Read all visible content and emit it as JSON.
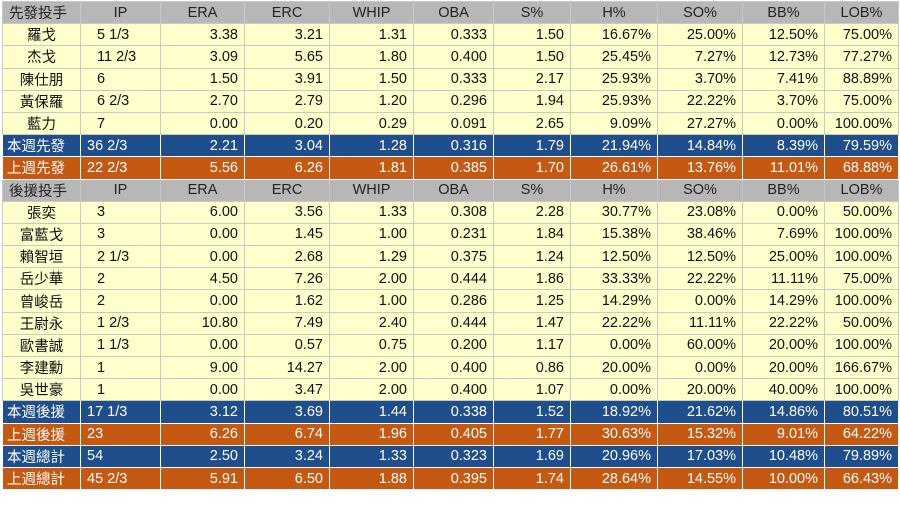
{
  "starters": {
    "header": [
      "先發投手",
      "IP",
      "ERA",
      "ERC",
      "WHIP",
      "OBA",
      "S%",
      "H%",
      "SO%",
      "BB%",
      "LOB%"
    ],
    "rows": [
      [
        "羅戈",
        "5 1/3",
        "3.38",
        "3.21",
        "1.31",
        "0.333",
        "1.50",
        "16.67%",
        "25.00%",
        "12.50%",
        "75.00%"
      ],
      [
        "杰戈",
        "11 2/3",
        "3.09",
        "5.65",
        "1.80",
        "0.400",
        "1.50",
        "25.45%",
        "7.27%",
        "12.73%",
        "77.27%"
      ],
      [
        "陳仕朋",
        "6",
        "1.50",
        "3.91",
        "1.50",
        "0.333",
        "2.17",
        "25.93%",
        "3.70%",
        "7.41%",
        "88.89%"
      ],
      [
        "黃保羅",
        "6 2/3",
        "2.70",
        "2.79",
        "1.20",
        "0.296",
        "1.94",
        "25.93%",
        "22.22%",
        "3.70%",
        "75.00%"
      ],
      [
        "藍力",
        "7",
        "0.00",
        "0.20",
        "0.29",
        "0.091",
        "2.65",
        "9.09%",
        "27.27%",
        "0.00%",
        "100.00%"
      ]
    ],
    "this_week": [
      "本週先發",
      "36 2/3",
      "2.21",
      "3.04",
      "1.28",
      "0.316",
      "1.79",
      "21.94%",
      "14.84%",
      "8.39%",
      "79.59%"
    ],
    "last_week": [
      "上週先發",
      "22 2/3",
      "5.56",
      "6.26",
      "1.81",
      "0.385",
      "1.70",
      "26.61%",
      "13.76%",
      "11.01%",
      "68.88%"
    ]
  },
  "relievers": {
    "header": [
      "後援投手",
      "IP",
      "ERA",
      "ERC",
      "WHIP",
      "OBA",
      "S%",
      "H%",
      "SO%",
      "BB%",
      "LOB%"
    ],
    "rows": [
      [
        "張奕",
        "3",
        "6.00",
        "3.56",
        "1.33",
        "0.308",
        "2.28",
        "30.77%",
        "23.08%",
        "0.00%",
        "50.00%"
      ],
      [
        "富藍戈",
        "3",
        "0.00",
        "1.45",
        "1.00",
        "0.231",
        "1.84",
        "15.38%",
        "38.46%",
        "7.69%",
        "100.00%"
      ],
      [
        "賴智垣",
        "2 1/3",
        "0.00",
        "2.68",
        "1.29",
        "0.375",
        "1.24",
        "12.50%",
        "12.50%",
        "25.00%",
        "100.00%"
      ],
      [
        "岳少華",
        "2",
        "4.50",
        "7.26",
        "2.00",
        "0.444",
        "1.86",
        "33.33%",
        "22.22%",
        "11.11%",
        "75.00%"
      ],
      [
        "曾峻岳",
        "2",
        "0.00",
        "1.62",
        "1.00",
        "0.286",
        "1.25",
        "14.29%",
        "0.00%",
        "14.29%",
        "100.00%"
      ],
      [
        "王尉永",
        "1 2/3",
        "10.80",
        "7.49",
        "2.40",
        "0.444",
        "1.47",
        "22.22%",
        "11.11%",
        "22.22%",
        "50.00%"
      ],
      [
        "歐書誠",
        "1 1/3",
        "0.00",
        "0.57",
        "0.75",
        "0.200",
        "1.17",
        "0.00%",
        "60.00%",
        "20.00%",
        "100.00%"
      ],
      [
        "李建勳",
        "1",
        "9.00",
        "14.27",
        "2.00",
        "0.400",
        "0.86",
        "20.00%",
        "0.00%",
        "20.00%",
        "166.67%"
      ],
      [
        "吳世豪",
        "1",
        "0.00",
        "3.47",
        "2.00",
        "0.400",
        "1.07",
        "0.00%",
        "20.00%",
        "40.00%",
        "100.00%"
      ]
    ],
    "this_week": [
      "本週後援",
      "17 1/3",
      "3.12",
      "3.69",
      "1.44",
      "0.338",
      "1.52",
      "18.92%",
      "21.62%",
      "14.86%",
      "80.51%"
    ],
    "last_week": [
      "上週後援",
      "23",
      "6.26",
      "6.74",
      "1.96",
      "0.405",
      "1.77",
      "30.63%",
      "15.32%",
      "9.01%",
      "64.22%"
    ]
  },
  "totals": {
    "this_week": [
      "本週總計",
      "54",
      "2.50",
      "3.24",
      "1.33",
      "0.323",
      "1.69",
      "20.96%",
      "17.03%",
      "10.48%",
      "79.89%"
    ],
    "last_week": [
      "上週總計",
      "45 2/3",
      "5.91",
      "6.50",
      "1.88",
      "0.395",
      "1.74",
      "28.64%",
      "14.55%",
      "10.00%",
      "66.43%"
    ]
  },
  "colors": {
    "header_bg": "#b7b7b7",
    "row_bg": "#ffffcc",
    "this_week_bg": "#1f4e8c",
    "last_week_bg": "#c65911"
  }
}
